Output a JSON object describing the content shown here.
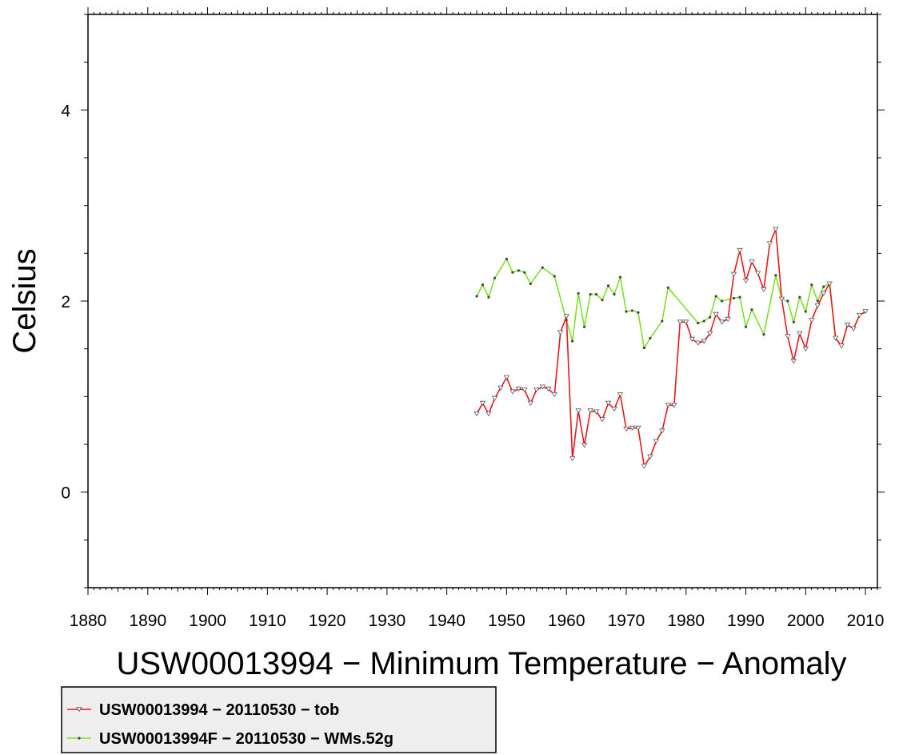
{
  "chart_data": {
    "type": "line",
    "title": "USW00013994 − Minimum Temperature − Anomaly",
    "ylabel": "Celsius",
    "xlim": [
      1880,
      2012
    ],
    "ylim": [
      -1,
      5
    ],
    "xticks": [
      1880,
      1890,
      1900,
      1910,
      1920,
      1930,
      1940,
      1950,
      1960,
      1970,
      1980,
      1990,
      2000,
      2010
    ],
    "yticks": [
      0,
      2,
      4
    ],
    "grid": false,
    "legend_position": "bottom-left",
    "series": [
      {
        "name": "USW00013994 − 20110530 − tob",
        "color": "#e41a1c",
        "x": [
          1945,
          1946,
          1947,
          1948,
          1949,
          1950,
          1951,
          1952,
          1953,
          1954,
          1955,
          1956,
          1957,
          1958,
          1959,
          1960,
          1961,
          1962,
          1963,
          1964,
          1965,
          1966,
          1967,
          1968,
          1969,
          1970,
          1971,
          1972,
          1973,
          1974,
          1975,
          1976,
          1977,
          1978,
          1979,
          1980,
          1981,
          1982,
          1983,
          1984,
          1985,
          1986,
          1987,
          1988,
          1989,
          1990,
          1991,
          1992,
          1993,
          1994,
          1995,
          1996,
          1997,
          1998,
          1999,
          2000,
          2001,
          2002,
          2003,
          2004,
          2005,
          2006,
          2007,
          2008,
          2009,
          2010
        ],
        "y": [
          0.82,
          0.93,
          0.82,
          0.98,
          1.09,
          1.2,
          1.05,
          1.08,
          1.07,
          0.93,
          1.07,
          1.1,
          1.08,
          1.02,
          1.67,
          1.84,
          0.35,
          0.85,
          0.49,
          0.85,
          0.84,
          0.76,
          0.93,
          0.87,
          1.02,
          0.66,
          0.67,
          0.67,
          0.27,
          0.37,
          0.53,
          0.64,
          0.91,
          0.91,
          1.78,
          1.78,
          1.6,
          1.56,
          1.58,
          1.66,
          1.86,
          1.78,
          1.81,
          2.28,
          2.53,
          2.21,
          2.41,
          2.29,
          2.12,
          2.6,
          2.75,
          2.02,
          1.63,
          1.37,
          1.66,
          1.5,
          1.8,
          1.95,
          2.08,
          2.18,
          1.61,
          1.53,
          1.75,
          1.71,
          1.85,
          1.89
        ]
      },
      {
        "name": "USW00013994F − 20110530 − WMs.52g",
        "color": "#7fe02a",
        "x": [
          1945,
          1946,
          1947,
          1948,
          1950,
          1951,
          1952,
          1953,
          1954,
          1956,
          1958,
          1960,
          1961,
          1962,
          1963,
          1964,
          1965,
          1966,
          1967,
          1968,
          1969,
          1970,
          1971,
          1972,
          1973,
          1974,
          1976,
          1977,
          1982,
          1983,
          1984,
          1985,
          1986,
          1988,
          1989,
          1990,
          1991,
          1993,
          1995,
          1996,
          1997,
          1998,
          1999,
          2000,
          2001,
          2002,
          2003,
          2004,
          2005,
          2006,
          2007,
          2008,
          2009,
          2010
        ],
        "y": [
          2.05,
          2.17,
          2.04,
          2.24,
          2.44,
          2.3,
          2.32,
          2.3,
          2.18,
          2.35,
          2.26,
          1.8,
          1.58,
          2.08,
          1.73,
          2.07,
          2.07,
          2.01,
          2.16,
          2.07,
          2.25,
          1.89,
          1.9,
          1.88,
          1.51,
          1.61,
          1.79,
          2.14,
          1.77,
          1.79,
          1.83,
          2.05,
          2.0,
          2.03,
          2.04,
          1.73,
          1.91,
          1.65,
          2.27,
          2.02,
          2.0,
          1.78,
          2.04,
          1.89,
          2.17,
          2.0,
          2.15,
          2.18,
          1.61,
          1.53,
          1.75,
          1.71,
          1.85,
          1.89
        ]
      }
    ]
  }
}
